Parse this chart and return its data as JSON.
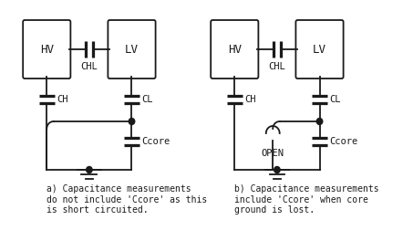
{
  "line_color": "#1a1a1a",
  "label_fontsize": 7.5,
  "caption_fontsize": 7.0,
  "caption_a": "a) Capacitance measurements\ndo not include 'Ccore' as this\nis short circuited.",
  "caption_b": "b) Capacitance measurements\ninclude 'Ccore' when core\nground is lost.",
  "hv_label": "HV",
  "lv_label": "LV",
  "chl_label": "CHL",
  "ch_label": "CH",
  "cl_label": "CL",
  "ccore_label": "Ccore",
  "open_label": "OPEN"
}
